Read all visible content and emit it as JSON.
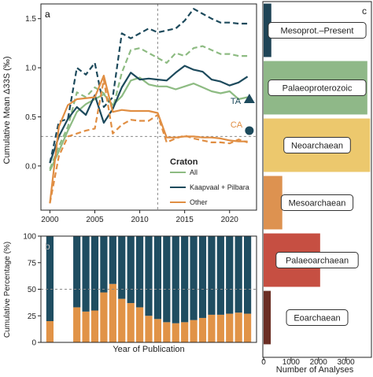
{
  "colors": {
    "all": "#8dbb82",
    "kaapvaal": "#1d4a5c",
    "other": "#e08e43",
    "teal_bar": "#1f4d61",
    "orange_bar": "#e19347",
    "grid_dash": "#8a8a8a"
  },
  "panels": {
    "a_label": "a",
    "b_label": "b",
    "c_label": "c"
  },
  "chart_data": [
    {
      "type": "line",
      "panel": "a",
      "ylabel": "Cumulative Mean Δ33S (‰)",
      "xlim": [
        1999,
        2023
      ],
      "ylim": [
        -0.45,
        1.65
      ],
      "x_ticks": [
        2000,
        2005,
        2010,
        2015,
        2020
      ],
      "y_ticks": [
        0.0,
        0.5,
        1.0,
        1.5
      ],
      "vline_x": 2012,
      "hline_y": 0.3,
      "legend": {
        "title": "Craton",
        "entries": [
          "All",
          "Kaapvaal + Pilbara",
          "Other"
        ]
      },
      "markers": [
        {
          "label": "TA",
          "shape": "triangle",
          "x": 2022.2,
          "y": 0.68
        },
        {
          "label": "CA",
          "shape": "circle",
          "x": 2022.2,
          "y": 0.36
        }
      ],
      "series": [
        {
          "name": "All",
          "key": "all",
          "style": "solid",
          "x": [
            2000,
            2001,
            2002,
            2003,
            2004,
            2005,
            2006,
            2007,
            2008,
            2009,
            2010,
            2011,
            2012,
            2013,
            2014,
            2015,
            2016,
            2017,
            2018,
            2019,
            2020,
            2021,
            2022
          ],
          "values": [
            -0.05,
            0.15,
            0.36,
            0.55,
            0.63,
            0.68,
            0.73,
            0.62,
            0.71,
            0.87,
            0.9,
            0.83,
            0.81,
            0.81,
            0.78,
            0.81,
            0.84,
            0.8,
            0.76,
            0.74,
            0.76,
            0.68,
            0.7
          ]
        },
        {
          "name": "All",
          "key": "all",
          "style": "dashed",
          "x": [
            2000,
            2001,
            2002,
            2003,
            2004,
            2005,
            2006,
            2007,
            2008,
            2009,
            2010,
            2011,
            2012,
            2013,
            2014,
            2015,
            2016,
            2017,
            2018,
            2019,
            2020,
            2021,
            2022
          ],
          "values": [
            -0.03,
            0.2,
            0.4,
            0.75,
            0.7,
            0.8,
            0.74,
            0.58,
            0.95,
            1.18,
            1.2,
            1.15,
            1.1,
            1.05,
            1.15,
            1.12,
            1.2,
            1.22,
            1.18,
            1.14,
            1.14,
            1.12,
            1.12
          ]
        },
        {
          "name": "Kaapvaal + Pilbara",
          "key": "kaapvaal",
          "style": "solid",
          "x": [
            2000,
            2001,
            2002,
            2003,
            2004,
            2005,
            2006,
            2007,
            2008,
            2009,
            2010,
            2011,
            2012,
            2013,
            2014,
            2015,
            2016,
            2017,
            2018,
            2019,
            2020,
            2021,
            2022
          ],
          "values": [
            0.03,
            0.3,
            0.48,
            0.6,
            0.52,
            0.72,
            0.44,
            0.58,
            0.8,
            0.95,
            0.88,
            0.89,
            0.88,
            0.87,
            0.95,
            1.02,
            0.98,
            0.96,
            0.88,
            0.86,
            0.82,
            0.85,
            0.91
          ]
        },
        {
          "name": "Kaapvaal + Pilbara",
          "key": "kaapvaal",
          "style": "dashed",
          "x": [
            2000,
            2001,
            2002,
            2003,
            2004,
            2005,
            2006,
            2007,
            2008,
            2009,
            2010,
            2011,
            2012,
            2013,
            2014,
            2015,
            2016,
            2017,
            2018,
            2019,
            2020,
            2021,
            2022
          ],
          "values": [
            0.03,
            0.45,
            0.48,
            1.0,
            0.93,
            1.05,
            0.6,
            0.7,
            1.35,
            1.3,
            1.35,
            1.4,
            1.36,
            1.38,
            1.4,
            1.48,
            1.6,
            1.55,
            1.5,
            1.46,
            1.46,
            1.45,
            1.45
          ]
        },
        {
          "name": "Other",
          "key": "other",
          "style": "solid",
          "x": [
            2000,
            2001,
            2002,
            2003,
            2004,
            2005,
            2006,
            2007,
            2008,
            2009,
            2010,
            2011,
            2012,
            2013,
            2014,
            2015,
            2016,
            2017,
            2018,
            2019,
            2020,
            2021,
            2022
          ],
          "values": [
            -0.38,
            0.4,
            0.62,
            0.68,
            0.69,
            0.7,
            0.92,
            0.55,
            0.57,
            0.56,
            0.56,
            0.56,
            0.54,
            0.29,
            0.29,
            0.3,
            0.3,
            0.29,
            0.29,
            0.28,
            0.26,
            0.25,
            0.25
          ]
        },
        {
          "name": "Other",
          "key": "other",
          "style": "dashed",
          "x": [
            2000,
            2001,
            2002,
            2003,
            2004,
            2005,
            2006,
            2007,
            2008,
            2009,
            2010,
            2011,
            2012,
            2013,
            2014,
            2015,
            2016,
            2017,
            2018,
            2019,
            2020,
            2021,
            2022
          ],
          "values": [
            -0.38,
            0.1,
            0.3,
            0.33,
            0.36,
            0.38,
            0.88,
            0.33,
            0.42,
            0.47,
            0.46,
            0.46,
            0.52,
            0.24,
            0.28,
            0.31,
            0.28,
            0.26,
            0.24,
            0.24,
            0.23,
            0.27,
            0.24
          ]
        }
      ]
    },
    {
      "type": "bar",
      "panel": "b",
      "stacked": true,
      "xlabel": "Year of Publication",
      "ylabel": "Cumulative Percentage (%)",
      "ylim": [
        0,
        100
      ],
      "y_ticks": [
        0,
        25,
        50,
        75,
        100
      ],
      "hline_y": 50,
      "categories": [
        2000,
        2001,
        2002,
        2003,
        2004,
        2005,
        2006,
        2007,
        2008,
        2009,
        2010,
        2011,
        2012,
        2013,
        2014,
        2015,
        2016,
        2017,
        2018,
        2019,
        2020,
        2021,
        2022
      ],
      "series": [
        {
          "key": "orange_bar",
          "values": [
            20,
            0,
            0,
            33,
            29,
            30,
            47,
            55,
            41,
            37,
            33,
            25,
            22,
            19,
            18,
            19,
            21,
            23,
            26,
            26,
            27,
            28,
            27
          ]
        },
        {
          "key": "teal_bar",
          "values": [
            80,
            0,
            0,
            67,
            71,
            70,
            53,
            45,
            59,
            63,
            67,
            75,
            78,
            81,
            82,
            81,
            79,
            77,
            74,
            74,
            73,
            72,
            73
          ]
        }
      ]
    },
    {
      "type": "bar",
      "panel": "c",
      "orientation": "horizontal",
      "xlabel": "Number of Analyses",
      "xlim": [
        0,
        3900
      ],
      "x_ticks": [
        0,
        1000,
        2000,
        3000
      ],
      "categories": [
        "Mesoprot.–Present",
        "Palaeoproterozoic",
        "Neoarchaean",
        "Mesoarchaean",
        "Palaeoarchaean",
        "Eoarchaean"
      ],
      "values": [
        280,
        3780,
        3880,
        680,
        2060,
        260
      ],
      "colors": [
        "#1f4456",
        "#8fb888",
        "#ecc86d",
        "#dd9250",
        "#c64f42",
        "#6b2e24"
      ]
    }
  ]
}
